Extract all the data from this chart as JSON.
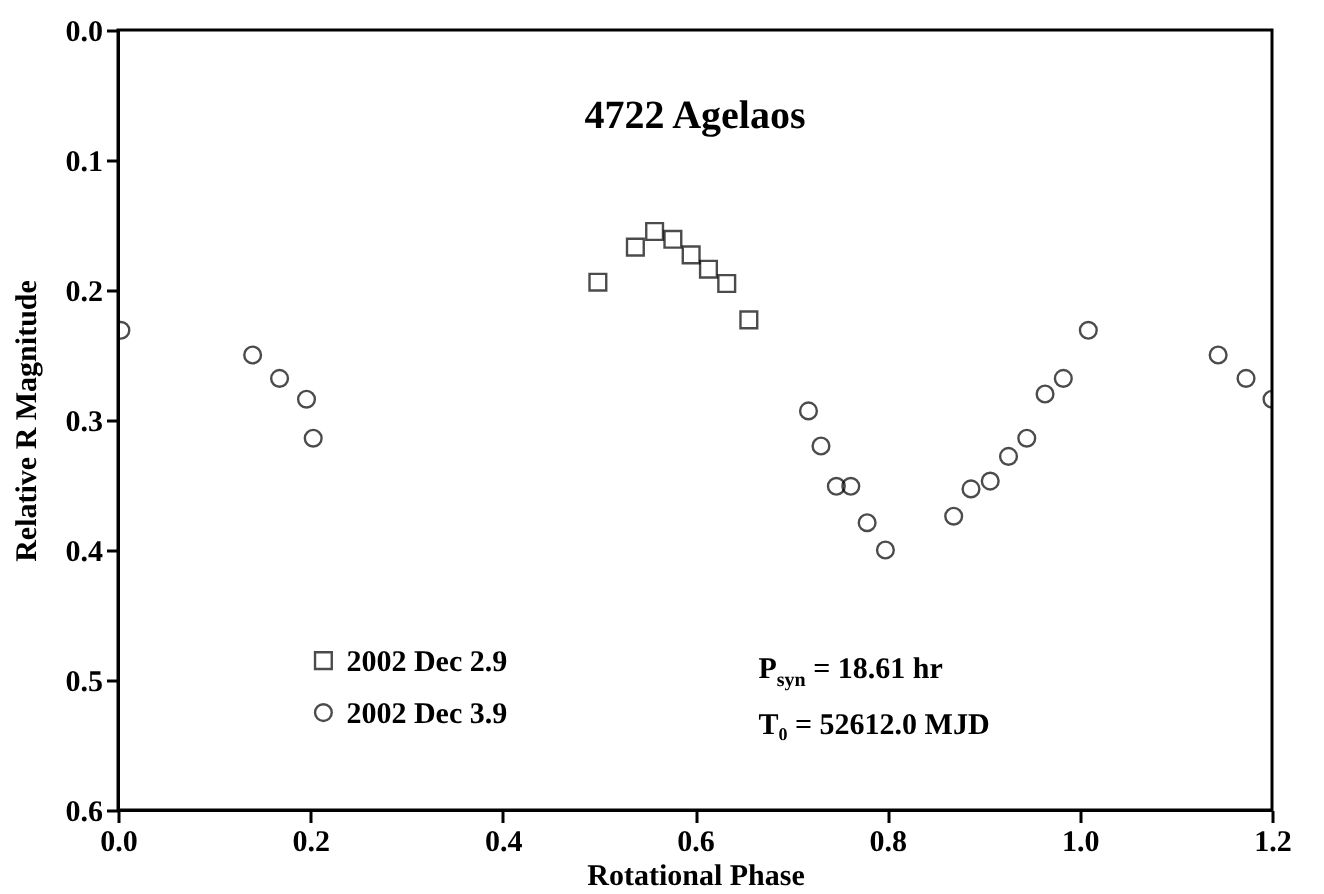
{
  "chart_data": {
    "type": "scatter",
    "title": "4722 Agelaos",
    "xlabel": "Rotational Phase",
    "ylabel": "Relative R Magnitude",
    "xlim": [
      0,
      1.2
    ],
    "xticks": [
      {
        "value": 0,
        "label": "0.0"
      },
      0.2,
      0.4,
      0.6,
      0.8,
      {
        "value": 1,
        "label": "1.0"
      },
      1.2
    ],
    "ylim": [
      0.6,
      0
    ],
    "yticks": [
      {
        "value": 0,
        "label": "0.0"
      },
      0.1,
      0.2,
      0.3,
      0.4,
      0.5,
      0.6
    ],
    "grid": false,
    "legend": "bottom left",
    "annotations": [
      "P$_{syn}$ = 18.61 hr",
      "T₀ = 52612.0 MJD"
    ],
    "series": [
      {
        "name": "2002 Dec 2.9",
        "color": "#000000",
        "marker": "square",
        "x": [
          0.499,
          0.538,
          0.558,
          0.577,
          0.596,
          0.614,
          0.633,
          0.656
        ],
        "values": [
          0.194,
          0.167,
          0.155,
          0.161,
          0.173,
          0.184,
          0.195,
          0.223
        ]
      },
      {
        "name": "2002 Dec 3.9",
        "color": "#000000",
        "marker": "circle",
        "x": [
          0.003,
          0.14,
          0.168,
          0.196,
          0.203,
          0.718,
          0.731,
          0.747,
          0.762,
          0.779,
          0.798,
          0.869,
          0.887,
          0.907,
          0.926,
          0.945,
          0.964,
          0.983,
          1.009,
          1.144,
          1.173,
          1.2
        ],
        "values": [
          0.231,
          0.25,
          0.268,
          0.284,
          0.314,
          0.293,
          0.32,
          0.351,
          0.351,
          0.379,
          0.4,
          0.374,
          0.353,
          0.347,
          0.328,
          0.314,
          0.28,
          0.268,
          0.231,
          0.25,
          0.268,
          0.284
        ]
      }
    ]
  }
}
